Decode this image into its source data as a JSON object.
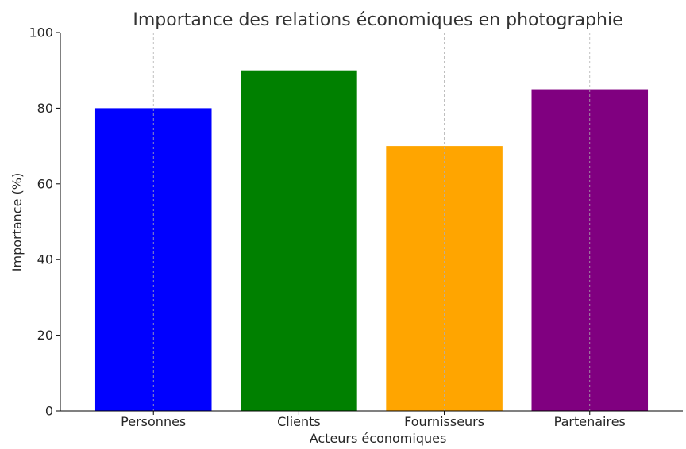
{
  "chart_data": {
    "type": "bar",
    "title": "Importance des relations économiques en photographie",
    "xlabel": "Acteurs économiques",
    "ylabel": "Importance (%)",
    "categories": [
      "Personnes",
      "Clients",
      "Fournisseurs",
      "Partenaires"
    ],
    "values": [
      80,
      90,
      70,
      85
    ],
    "ylim": [
      0,
      100
    ],
    "yticks": [
      0,
      20,
      40,
      60,
      80,
      100
    ],
    "grid": "vertical dashed",
    "colors": [
      "#0000ff",
      "#008000",
      "#ffa500",
      "#800080"
    ]
  }
}
